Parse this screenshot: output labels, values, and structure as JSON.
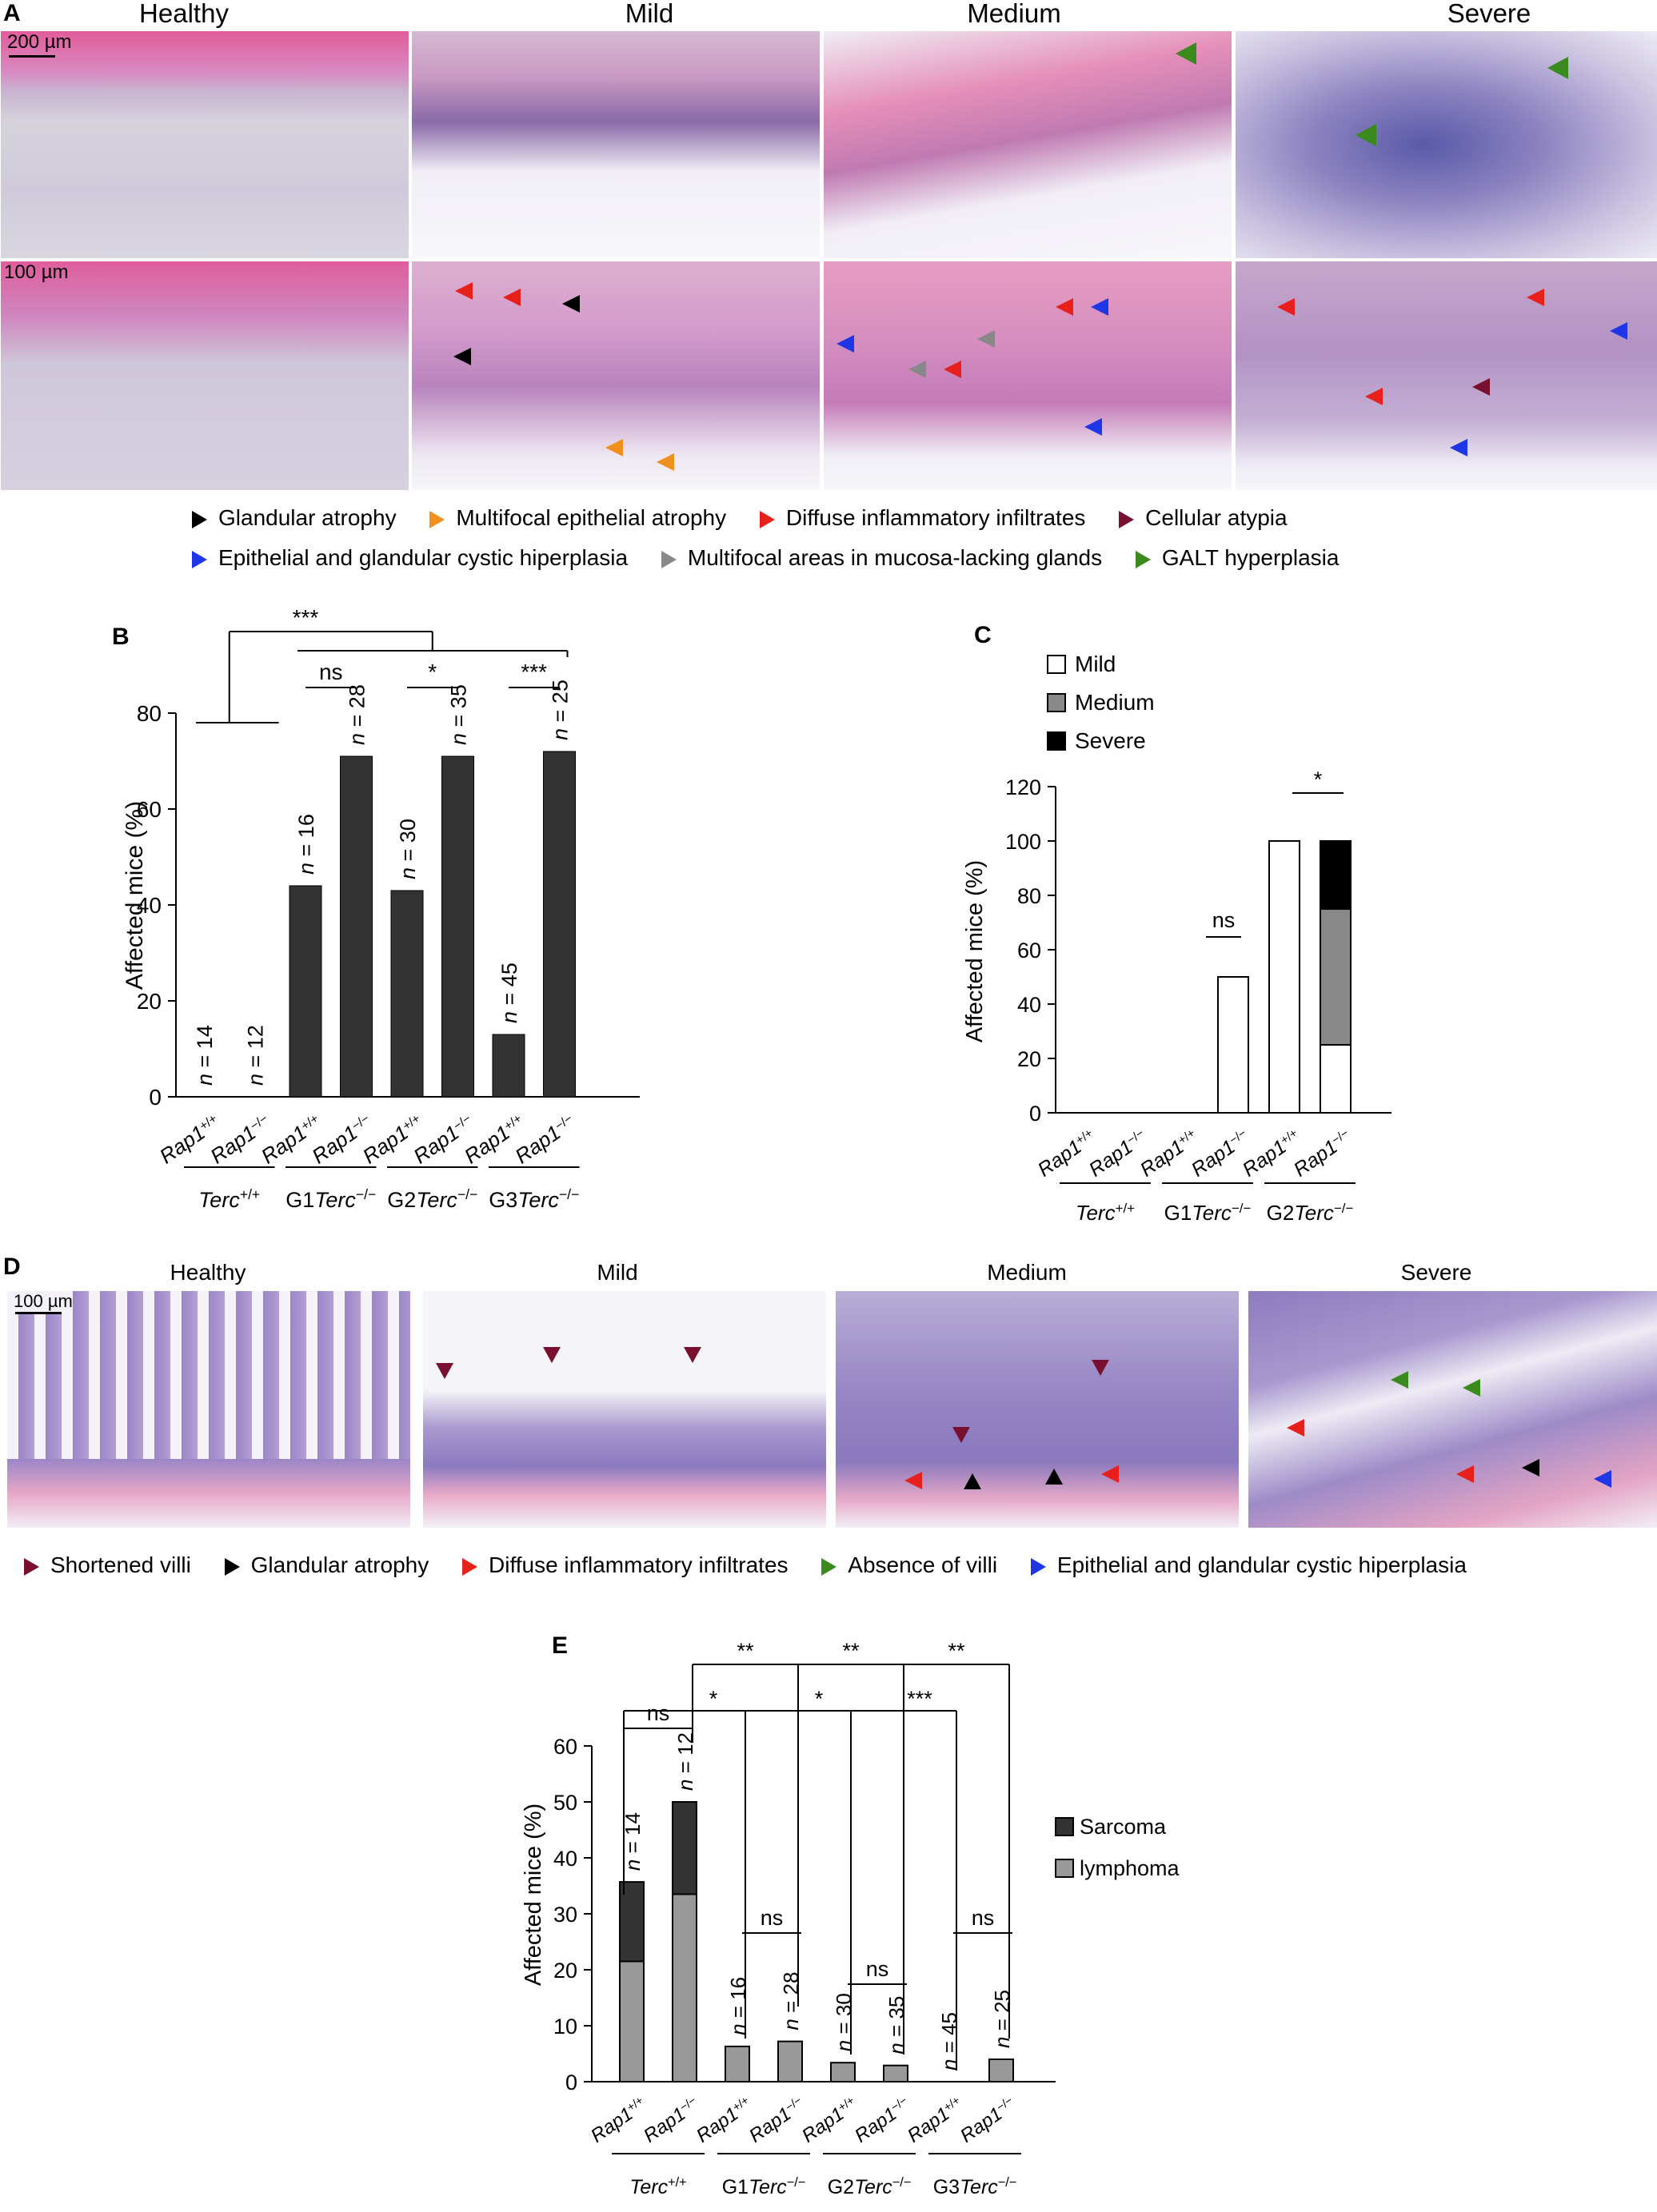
{
  "panel_a": {
    "letter": "A",
    "columns": [
      "Healthy",
      "Mild",
      "Medium",
      "Severe"
    ],
    "scale_top": "200 µm",
    "scale_bottom": "100 µm",
    "legend": [
      {
        "label": "Glandular atrophy",
        "color": "#000000"
      },
      {
        "label": "Multifocal epithelial atrophy",
        "color": "#f0901e"
      },
      {
        "label": "Diffuse inflammatory infiltrates",
        "color": "#e8201c"
      },
      {
        "label": "Cellular atypia",
        "color": "#7a1030"
      },
      {
        "label": "Epithelial and glandular cystic hiperplasia",
        "color": "#1e36e6"
      },
      {
        "label": "Multifocal areas in mucosa-lacking glands",
        "color": "#888888"
      },
      {
        "label": "GALT hyperplasia",
        "color": "#3a8a1e"
      }
    ]
  },
  "panel_d": {
    "letter": "D",
    "columns": [
      "Healthy",
      "Mild",
      "Medium",
      "Severe"
    ],
    "scale": "100 µm",
    "legend": [
      {
        "label": "Shortened villi",
        "color": "#7a1030"
      },
      {
        "label": "Glandular atrophy",
        "color": "#000000"
      },
      {
        "label": "Diffuse inflammatory infiltrates",
        "color": "#e8201c"
      },
      {
        "label": "Absence of villi",
        "color": "#3a8a1e"
      },
      {
        "label": "Epithelial and glandular cystic hiperplasia",
        "color": "#1e36e6"
      }
    ]
  },
  "chart_data": [
    {
      "panel": "B",
      "type": "bar",
      "ylabel": "Affected mice (%)",
      "ylim": [
        0,
        80
      ],
      "yticks": [
        0,
        20,
        40,
        60,
        80
      ],
      "categories": [
        "Rap1+/+",
        "Rap1−/−",
        "Rap1+/+",
        "Rap1−/−",
        "Rap1+/+",
        "Rap1−/−",
        "Rap1+/+",
        "Rap1−/−"
      ],
      "groups": [
        "Terc+/+",
        "G1 Terc−/−",
        "G2 Terc−/−",
        "G3 Terc−/−"
      ],
      "values": [
        0,
        0,
        44,
        71,
        43,
        71,
        13,
        72
      ],
      "n_labels": [
        "n = 14",
        "n = 12",
        "n = 16",
        "n = 28",
        "n = 30",
        "n = 35",
        "n = 45",
        "n = 25"
      ],
      "significance": [
        "***",
        "ns",
        "*",
        "***"
      ],
      "bar_color": "#333333"
    },
    {
      "panel": "C",
      "type": "bar",
      "stacked": true,
      "ylabel": "Affected mice (%)",
      "ylim": [
        0,
        120
      ],
      "yticks": [
        0,
        20,
        40,
        60,
        80,
        100,
        120
      ],
      "categories": [
        "Rap1+/+",
        "Rap1−/−",
        "Rap1+/+",
        "Rap1−/−",
        "Rap1+/+",
        "Rap1−/−"
      ],
      "groups": [
        "Terc+/+",
        "G1 Terc−/−",
        "G2 Terc−/−"
      ],
      "series": [
        {
          "name": "Mild",
          "color": "#ffffff",
          "values": [
            0,
            0,
            0,
            50,
            100,
            25
          ]
        },
        {
          "name": "Medium",
          "color": "#888888",
          "values": [
            0,
            0,
            0,
            0,
            0,
            50
          ]
        },
        {
          "name": "Severe",
          "color": "#000000",
          "values": [
            0,
            0,
            0,
            0,
            0,
            25
          ]
        }
      ],
      "significance": [
        "ns",
        "*"
      ],
      "legend": "top-left"
    },
    {
      "panel": "E",
      "type": "bar",
      "stacked": true,
      "ylabel": "Affected mice (%)",
      "ylim": [
        0,
        60
      ],
      "yticks": [
        0,
        10,
        20,
        30,
        40,
        50,
        60
      ],
      "categories": [
        "Rap1+/+",
        "Rap1−/−",
        "Rap1+/+",
        "Rap1−/−",
        "Rap1+/+",
        "Rap1−/−",
        "Rap1+/+",
        "Rap1−/−"
      ],
      "groups": [
        "Terc+/+",
        "G1 Terc−/−",
        "G2 Terc−/−",
        "G3 Terc−/−"
      ],
      "series": [
        {
          "name": "lymphoma",
          "color": "#999999",
          "values": [
            21.5,
            33.5,
            6.3,
            7.2,
            3.4,
            2.9,
            0,
            4.0
          ]
        },
        {
          "name": "Sarcoma",
          "color": "#333333",
          "values": [
            14.2,
            16.5,
            0,
            0,
            0,
            0,
            0,
            0
          ]
        }
      ],
      "n_labels": [
        "n = 14",
        "n = 12",
        "n = 16",
        "n = 28",
        "n = 30",
        "n = 35",
        "n = 45",
        "n = 25"
      ],
      "significance": [
        "ns",
        "*",
        "**",
        "*",
        "**",
        "***",
        "**",
        "ns",
        "ns",
        "ns"
      ],
      "legend": "right"
    }
  ]
}
